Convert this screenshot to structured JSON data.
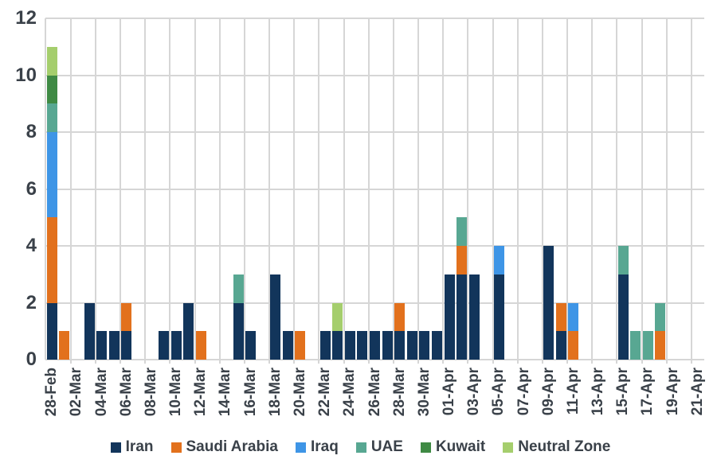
{
  "chart_data": {
    "type": "bar",
    "stacked": true,
    "title": "",
    "xlabel": "",
    "ylabel": "",
    "ylim": [
      0,
      12
    ],
    "yticks": [
      0,
      2,
      4,
      6,
      8,
      10,
      12
    ],
    "xtick_interval": 2,
    "grid": true,
    "legend_position": "bottom",
    "x": [
      "28-Feb",
      "01-Mar",
      "02-Mar",
      "03-Mar",
      "04-Mar",
      "05-Mar",
      "06-Mar",
      "07-Mar",
      "08-Mar",
      "09-Mar",
      "10-Mar",
      "11-Mar",
      "12-Mar",
      "13-Mar",
      "14-Mar",
      "15-Mar",
      "16-Mar",
      "17-Mar",
      "18-Mar",
      "19-Mar",
      "20-Mar",
      "21-Mar",
      "22-Mar",
      "23-Mar",
      "24-Mar",
      "25-Mar",
      "26-Mar",
      "27-Mar",
      "28-Mar",
      "29-Mar",
      "30-Mar",
      "31-Mar",
      "01-Apr",
      "02-Apr",
      "03-Apr",
      "04-Apr",
      "05-Apr",
      "06-Apr",
      "07-Apr",
      "08-Apr",
      "09-Apr",
      "10-Apr",
      "11-Apr",
      "12-Apr",
      "13-Apr",
      "14-Apr",
      "15-Apr",
      "16-Apr",
      "17-Apr",
      "18-Apr",
      "19-Apr",
      "20-Apr",
      "21-Apr"
    ],
    "series": [
      {
        "name": "Iran",
        "color": "#12355b",
        "values": [
          2,
          0,
          0,
          2,
          1,
          1,
          1,
          0,
          0,
          1,
          1,
          2,
          0,
          0,
          0,
          2,
          1,
          0,
          3,
          1,
          0,
          0,
          1,
          1,
          1,
          1,
          1,
          1,
          1,
          1,
          1,
          1,
          3,
          3,
          3,
          0,
          3,
          0,
          0,
          0,
          4,
          1,
          0,
          0,
          0,
          0,
          3,
          0,
          0,
          0,
          0,
          0,
          0
        ]
      },
      {
        "name": "Saudi Arabia",
        "color": "#e2711d",
        "values": [
          3,
          1,
          0,
          0,
          0,
          0,
          1,
          0,
          0,
          0,
          0,
          0,
          1,
          0,
          0,
          0,
          0,
          0,
          0,
          0,
          1,
          0,
          0,
          0,
          0,
          0,
          0,
          0,
          1,
          0,
          0,
          0,
          0,
          1,
          0,
          0,
          0,
          0,
          0,
          0,
          0,
          1,
          1,
          0,
          0,
          0,
          0,
          0,
          0,
          1,
          0,
          0,
          0
        ]
      },
      {
        "name": "Iraq",
        "color": "#3e95e6",
        "values": [
          3,
          0,
          0,
          0,
          0,
          0,
          0,
          0,
          0,
          0,
          0,
          0,
          0,
          0,
          0,
          0,
          0,
          0,
          0,
          0,
          0,
          0,
          0,
          0,
          0,
          0,
          0,
          0,
          0,
          0,
          0,
          0,
          0,
          0,
          0,
          0,
          1,
          0,
          0,
          0,
          0,
          0,
          1,
          0,
          0,
          0,
          0,
          0,
          0,
          0,
          0,
          0,
          0
        ]
      },
      {
        "name": "UAE",
        "color": "#58a792",
        "values": [
          1,
          0,
          0,
          0,
          0,
          0,
          0,
          0,
          0,
          0,
          0,
          0,
          0,
          0,
          0,
          1,
          0,
          0,
          0,
          0,
          0,
          0,
          0,
          0,
          0,
          0,
          0,
          0,
          0,
          0,
          0,
          0,
          0,
          1,
          0,
          0,
          0,
          0,
          0,
          0,
          0,
          0,
          0,
          0,
          0,
          0,
          1,
          1,
          1,
          1,
          0,
          0,
          0
        ]
      },
      {
        "name": "Kuwait",
        "color": "#3f8a44",
        "values": [
          1,
          0,
          0,
          0,
          0,
          0,
          0,
          0,
          0,
          0,
          0,
          0,
          0,
          0,
          0,
          0,
          0,
          0,
          0,
          0,
          0,
          0,
          0,
          0,
          0,
          0,
          0,
          0,
          0,
          0,
          0,
          0,
          0,
          0,
          0,
          0,
          0,
          0,
          0,
          0,
          0,
          0,
          0,
          0,
          0,
          0,
          0,
          0,
          0,
          0,
          0,
          0,
          0
        ]
      },
      {
        "name": "Neutral Zone",
        "color": "#a5ce6d",
        "values": [
          1,
          0,
          0,
          0,
          0,
          0,
          0,
          0,
          0,
          0,
          0,
          0,
          0,
          0,
          0,
          0,
          0,
          0,
          0,
          0,
          0,
          0,
          0,
          1,
          0,
          0,
          0,
          0,
          0,
          0,
          0,
          0,
          0,
          0,
          0,
          0,
          0,
          0,
          0,
          0,
          0,
          0,
          0,
          0,
          0,
          0,
          0,
          0,
          0,
          0,
          0,
          0,
          0
        ]
      }
    ]
  },
  "colors": {
    "grid": "#d6d6d6",
    "axis_text": "#3a4149",
    "background": "#ffffff"
  }
}
